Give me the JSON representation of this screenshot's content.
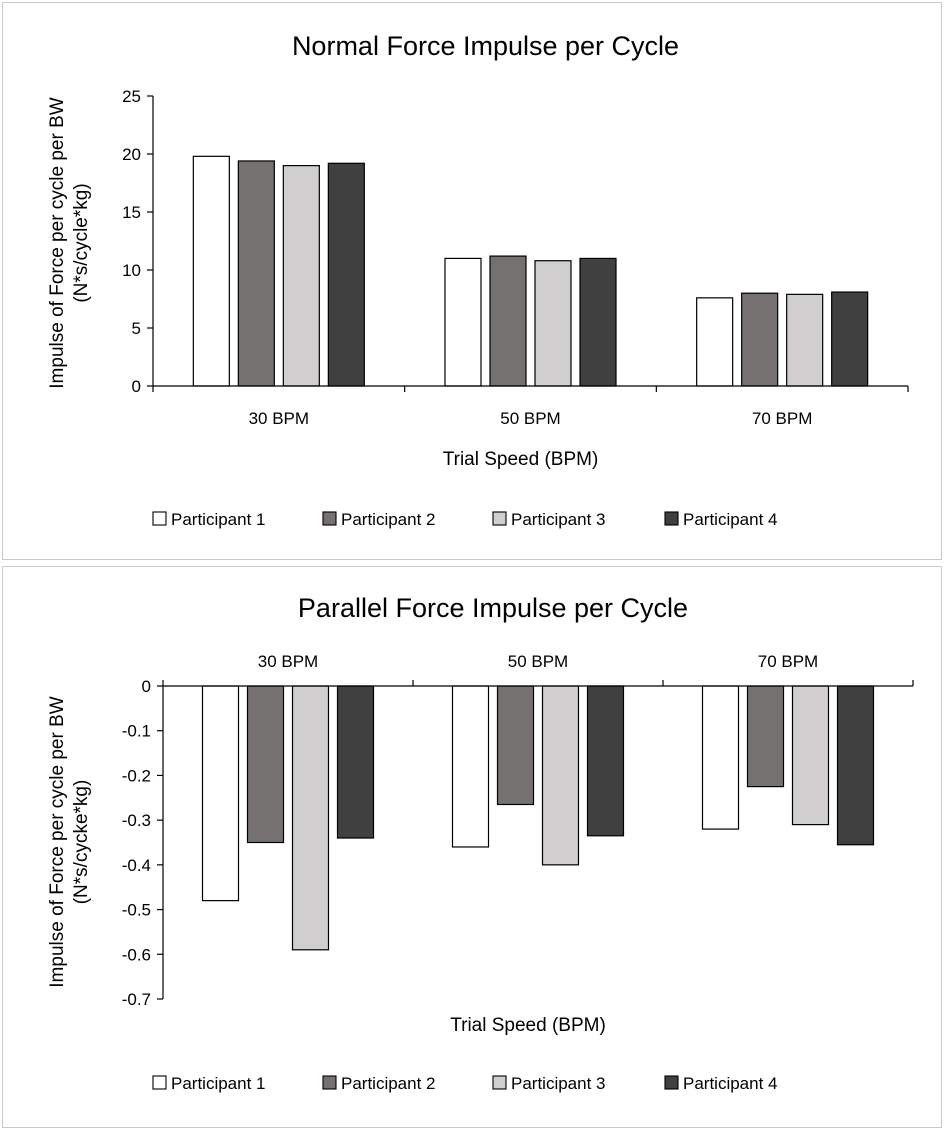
{
  "chart_data": [
    {
      "type": "bar",
      "title": "Normal Force Impulse per Cycle",
      "xlabel": "Trial Speed (BPM)",
      "ylabel": [
        "Impulse of Force per cycle per BW",
        "(N*s/cycle*kg)"
      ],
      "categories": [
        "30 BPM",
        "50 BPM",
        "70 BPM"
      ],
      "ylim": [
        0,
        25
      ],
      "yticks": [
        0,
        5,
        10,
        15,
        20,
        25
      ],
      "ytick_labels": [
        "0",
        "5",
        "10",
        "15",
        "20",
        "25"
      ],
      "grid": false,
      "legend_position": "bottom",
      "series": [
        {
          "name": "Participant 1",
          "color": "#ffffff",
          "values": [
            19.8,
            11.0,
            7.6
          ]
        },
        {
          "name": "Participant 2",
          "color": "#767171",
          "values": [
            19.4,
            11.2,
            8.0
          ]
        },
        {
          "name": "Participant 3",
          "color": "#d0cece",
          "values": [
            19.0,
            10.8,
            7.9
          ]
        },
        {
          "name": "Participant 4",
          "color": "#404040",
          "values": [
            19.2,
            11.0,
            8.1
          ]
        }
      ]
    },
    {
      "type": "bar",
      "title": "Parallel Force Impulse per Cycle",
      "xlabel": "Trial Speed (BPM)",
      "ylabel": [
        "Impulse of Force per cycle per BW",
        "(N*s/cycke*kg)"
      ],
      "categories": [
        "30 BPM",
        "50 BPM",
        "70 BPM"
      ],
      "ylim": [
        -0.7,
        0
      ],
      "yticks": [
        0,
        -0.1,
        -0.2,
        -0.3,
        -0.4,
        -0.5,
        -0.6,
        -0.7
      ],
      "ytick_labels": [
        "0",
        "-0.1",
        "-0.2",
        "-0.3",
        "-0.4",
        "-0.5",
        "-0.6",
        "-0.7"
      ],
      "grid": false,
      "legend_position": "bottom",
      "series": [
        {
          "name": "Participant 1",
          "color": "#ffffff",
          "values": [
            -0.48,
            -0.36,
            -0.32
          ]
        },
        {
          "name": "Participant 2",
          "color": "#767171",
          "values": [
            -0.35,
            -0.265,
            -0.225
          ]
        },
        {
          "name": "Participant 3",
          "color": "#d0cece",
          "values": [
            -0.59,
            -0.4,
            -0.31
          ]
        },
        {
          "name": "Participant 4",
          "color": "#404040",
          "values": [
            -0.34,
            -0.335,
            -0.355
          ]
        }
      ]
    }
  ]
}
